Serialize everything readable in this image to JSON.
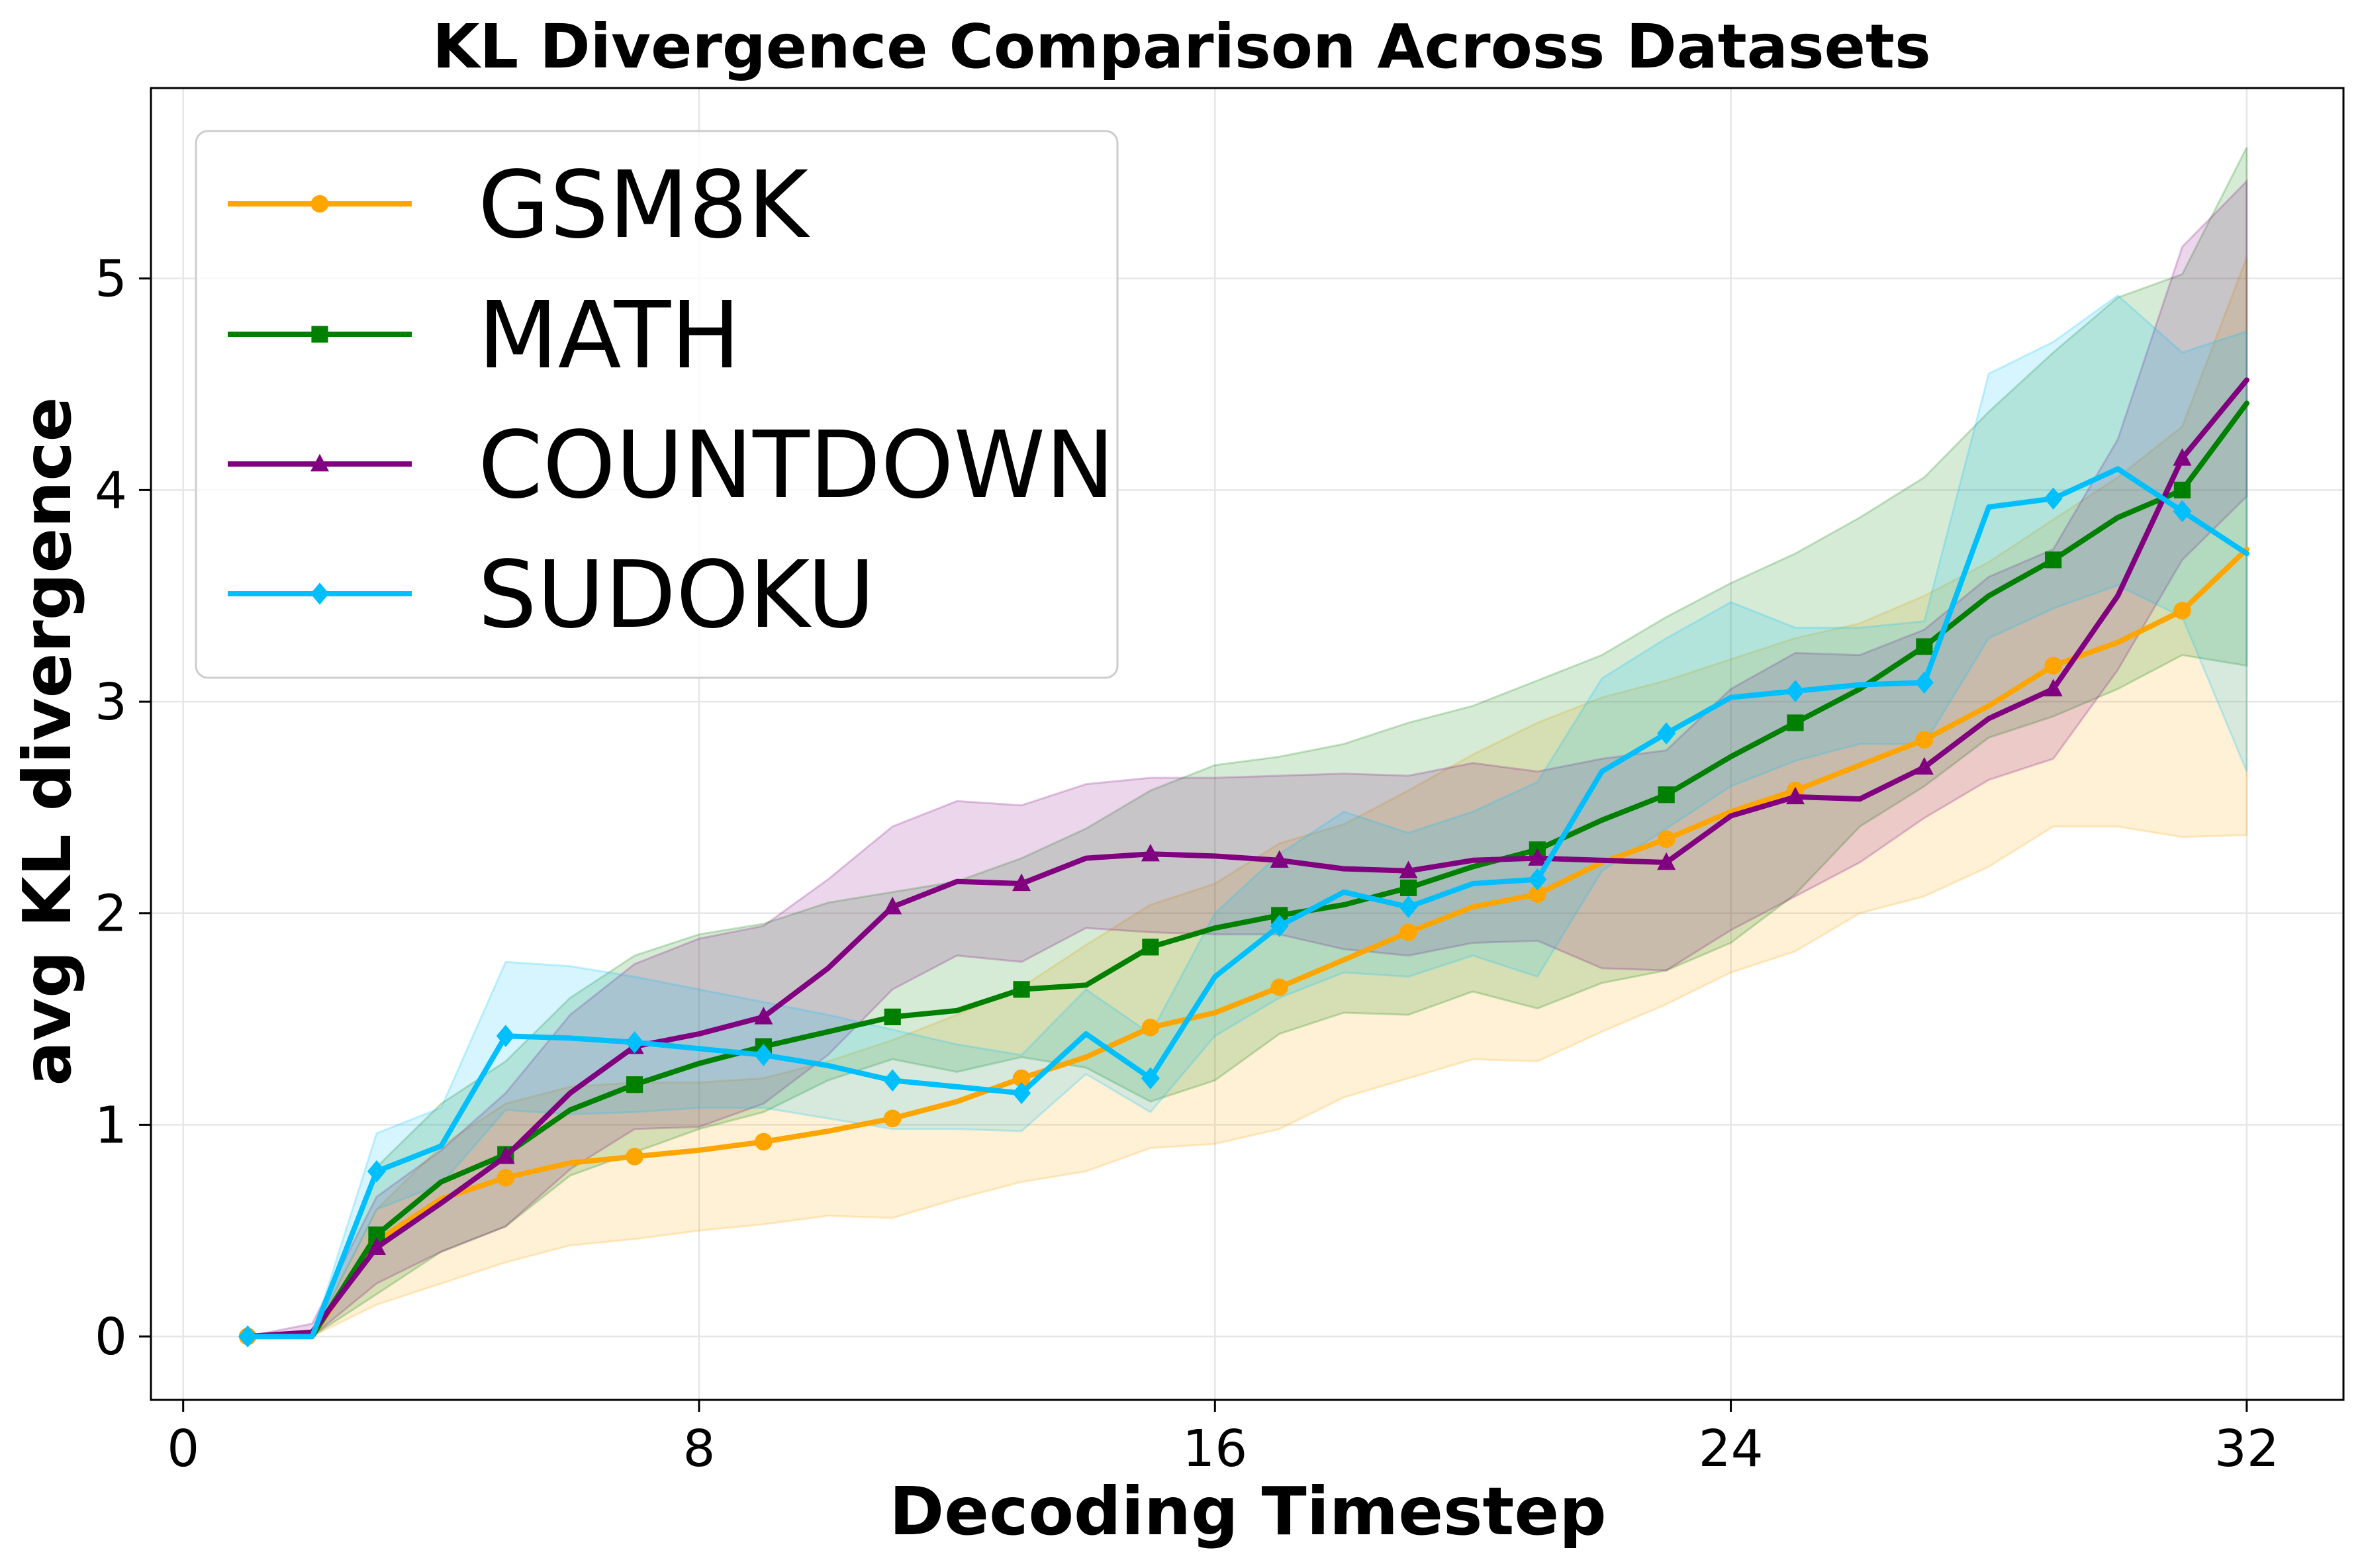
{
  "chart_data": {
    "type": "line",
    "title": "KL Divergence Comparison Across Datasets",
    "xlabel": "Decoding Timestep",
    "ylabel": "avg KL divergence",
    "xlim": [
      -0.5,
      33.5
    ],
    "ylim": [
      -0.3,
      5.9
    ],
    "xticks": [
      0,
      8,
      16,
      24,
      32
    ],
    "yticks": [
      0,
      1,
      2,
      3,
      4,
      5
    ],
    "grid": true,
    "legend_position": "upper-left",
    "x": [
      1,
      2,
      3,
      4,
      5,
      6,
      7,
      8,
      9,
      10,
      11,
      12,
      13,
      14,
      15,
      16,
      17,
      18,
      19,
      20,
      21,
      22,
      23,
      24,
      25,
      26,
      27,
      28,
      29,
      30,
      31,
      32
    ],
    "series": [
      {
        "name": "GSM8K",
        "color": "#ffa500",
        "marker": "circle",
        "marker_x": [
          1,
          3,
          5,
          7,
          9,
          11,
          13,
          15,
          17,
          19,
          21,
          23,
          25,
          27,
          29,
          31
        ],
        "values": [
          0,
          0,
          0.45,
          0.65,
          0.75,
          0.82,
          0.85,
          0.88,
          0.92,
          0.97,
          1.03,
          1.11,
          1.22,
          1.32,
          1.46,
          1.53,
          1.65,
          1.78,
          1.91,
          2.03,
          2.09,
          2.24,
          2.35,
          2.48,
          2.58,
          2.7,
          2.82,
          2.98,
          3.17,
          3.28,
          3.43,
          3.72
        ],
        "lower": [
          0,
          0,
          0.15,
          0.25,
          0.35,
          0.43,
          0.46,
          0.5,
          0.53,
          0.57,
          0.56,
          0.65,
          0.73,
          0.78,
          0.89,
          0.91,
          0.98,
          1.13,
          1.22,
          1.31,
          1.3,
          1.44,
          1.57,
          1.72,
          1.82,
          2.0,
          2.08,
          2.22,
          2.41,
          2.41,
          2.36,
          2.37
        ],
        "upper": [
          0,
          0,
          0.6,
          0.9,
          1.1,
          1.18,
          1.2,
          1.2,
          1.22,
          1.3,
          1.4,
          1.52,
          1.65,
          1.85,
          2.04,
          2.14,
          2.33,
          2.42,
          2.58,
          2.75,
          2.9,
          3.02,
          3.1,
          3.2,
          3.3,
          3.37,
          3.5,
          3.66,
          3.86,
          4.06,
          4.3,
          5.1
        ]
      },
      {
        "name": "MATH",
        "color": "#008000",
        "marker": "square",
        "marker_x": [
          3,
          5,
          7,
          9,
          11,
          13,
          15,
          17,
          19,
          21,
          23,
          25,
          27,
          29,
          31
        ],
        "values": [
          0,
          0,
          0.48,
          0.73,
          0.86,
          1.07,
          1.19,
          1.29,
          1.37,
          1.44,
          1.51,
          1.54,
          1.64,
          1.66,
          1.84,
          1.93,
          1.99,
          2.04,
          2.12,
          2.22,
          2.3,
          2.44,
          2.56,
          2.74,
          2.9,
          3.06,
          3.26,
          3.5,
          3.67,
          3.87,
          4.0,
          4.41
        ],
        "lower": [
          0,
          0,
          0.2,
          0.4,
          0.52,
          0.76,
          0.87,
          0.98,
          1.06,
          1.21,
          1.31,
          1.25,
          1.32,
          1.27,
          1.11,
          1.21,
          1.43,
          1.53,
          1.52,
          1.63,
          1.55,
          1.67,
          1.73,
          1.86,
          2.09,
          2.41,
          2.6,
          2.83,
          2.93,
          3.06,
          3.22,
          3.17
        ],
        "upper": [
          0,
          0,
          0.8,
          1.1,
          1.3,
          1.6,
          1.8,
          1.9,
          1.95,
          2.05,
          2.1,
          2.15,
          2.26,
          2.4,
          2.58,
          2.7,
          2.74,
          2.8,
          2.9,
          2.98,
          3.1,
          3.22,
          3.4,
          3.56,
          3.7,
          3.87,
          4.06,
          4.37,
          4.65,
          4.91,
          5.02,
          5.62
        ]
      },
      {
        "name": "COUNTDOWN",
        "color": "#800080",
        "marker": "triangle",
        "marker_x": [
          3,
          5,
          7,
          9,
          11,
          13,
          15,
          17,
          19,
          21,
          23,
          25,
          27,
          29,
          31
        ],
        "values": [
          0,
          0.02,
          0.42,
          0.63,
          0.85,
          1.15,
          1.37,
          1.43,
          1.51,
          1.74,
          2.03,
          2.15,
          2.14,
          2.26,
          2.28,
          2.27,
          2.25,
          2.21,
          2.2,
          2.25,
          2.26,
          2.25,
          2.24,
          2.46,
          2.55,
          2.54,
          2.69,
          2.92,
          3.06,
          3.5,
          4.15,
          4.52
        ],
        "lower": [
          0,
          0,
          0.25,
          0.4,
          0.52,
          0.79,
          0.98,
          0.99,
          1.1,
          1.33,
          1.64,
          1.8,
          1.77,
          1.93,
          1.91,
          1.9,
          1.9,
          1.83,
          1.8,
          1.86,
          1.87,
          1.74,
          1.73,
          1.92,
          2.08,
          2.24,
          2.45,
          2.63,
          2.73,
          3.15,
          3.67,
          3.97
        ],
        "upper": [
          0,
          0.06,
          0.66,
          0.88,
          1.15,
          1.52,
          1.76,
          1.88,
          1.94,
          2.16,
          2.41,
          2.53,
          2.51,
          2.61,
          2.64,
          2.64,
          2.65,
          2.66,
          2.65,
          2.71,
          2.67,
          2.73,
          2.77,
          3.06,
          3.23,
          3.22,
          3.34,
          3.59,
          3.72,
          4.24,
          5.15,
          5.46
        ]
      },
      {
        "name": "SUDOKU",
        "color": "#00bfff",
        "marker": "diamond",
        "marker_x": [
          1,
          3,
          5,
          7,
          9,
          11,
          13,
          15,
          17,
          19,
          21,
          23,
          25,
          27,
          29,
          31
        ],
        "values": [
          0,
          0,
          0.78,
          0.9,
          1.42,
          1.41,
          1.39,
          1.36,
          1.33,
          1.28,
          1.21,
          1.18,
          1.15,
          1.43,
          1.22,
          1.7,
          1.94,
          2.1,
          2.03,
          2.14,
          2.16,
          2.67,
          2.85,
          3.02,
          3.05,
          3.08,
          3.09,
          3.92,
          3.96,
          4.1,
          3.9,
          3.7
        ],
        "lower": [
          0,
          0,
          0.6,
          0.72,
          1.07,
          1.05,
          1.06,
          1.08,
          1.08,
          1.03,
          0.98,
          0.98,
          0.97,
          1.24,
          1.06,
          1.42,
          1.6,
          1.72,
          1.7,
          1.8,
          1.7,
          2.2,
          2.4,
          2.6,
          2.72,
          2.8,
          2.8,
          3.3,
          3.44,
          3.55,
          3.4,
          2.67
        ],
        "upper": [
          0,
          0,
          0.96,
          1.08,
          1.77,
          1.75,
          1.7,
          1.64,
          1.58,
          1.52,
          1.45,
          1.38,
          1.33,
          1.64,
          1.43,
          2.0,
          2.28,
          2.48,
          2.38,
          2.48,
          2.62,
          3.11,
          3.3,
          3.47,
          3.35,
          3.35,
          3.38,
          4.55,
          4.7,
          4.92,
          4.65,
          4.75
        ]
      }
    ]
  }
}
